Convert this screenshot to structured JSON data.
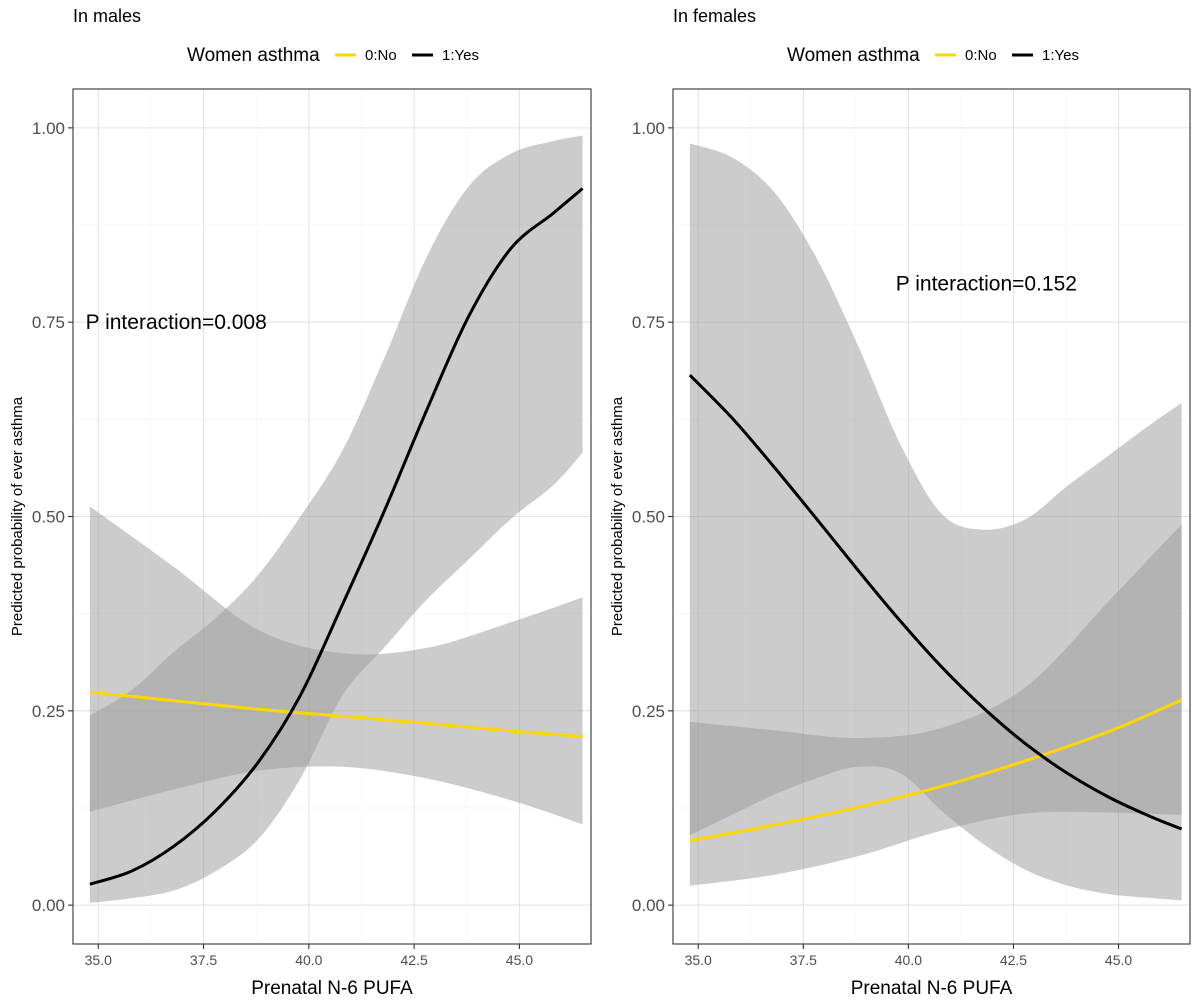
{
  "chart_data": [
    {
      "type": "line",
      "title": "In males",
      "legend": {
        "title": "Women asthma",
        "position": "top"
      },
      "xlabel": "Prenatal N-6 PUFA",
      "ylabel": "Predicted probability of ever asthma",
      "xlim": [
        34.4,
        46.7
      ],
      "ylim": [
        -0.05,
        1.05
      ],
      "xticks": [
        35.0,
        37.5,
        40.0,
        42.5,
        45.0
      ],
      "yticks": [
        0.0,
        0.25,
        0.5,
        0.75,
        1.0
      ],
      "xtick_labels": [
        "35.0",
        "37.5",
        "40.0",
        "42.5",
        "45.0"
      ],
      "ytick_labels": [
        "0.00",
        "0.25",
        "0.50",
        "0.75",
        "1.00"
      ],
      "grid": true,
      "annotation": {
        "text": "P interaction=0.008",
        "x": 34.7,
        "y": 0.75
      },
      "series": [
        {
          "name": "0:No",
          "color": "#FFD700",
          "x": [
            34.8,
            36.8,
            38.8,
            40.8,
            42.8,
            44.8,
            46.5
          ],
          "y": [
            0.274,
            0.263,
            0.252,
            0.243,
            0.234,
            0.224,
            0.217
          ],
          "ci_lower": [
            0.12,
            0.149,
            0.173,
            0.178,
            0.163,
            0.135,
            0.104
          ],
          "ci_upper": [
            0.513,
            0.435,
            0.354,
            0.324,
            0.331,
            0.364,
            0.396
          ]
        },
        {
          "name": "1:Yes",
          "color": "#000000",
          "x": [
            34.8,
            35.8,
            36.8,
            37.8,
            38.8,
            39.8,
            40.8,
            41.8,
            42.8,
            43.8,
            44.8,
            45.8,
            46.5
          ],
          "y": [
            0.027,
            0.044,
            0.076,
            0.122,
            0.184,
            0.27,
            0.387,
            0.508,
            0.637,
            0.758,
            0.845,
            0.89,
            0.922
          ],
          "ci_lower": [
            0.003,
            0.009,
            0.019,
            0.044,
            0.085,
            0.163,
            0.27,
            0.332,
            0.393,
            0.445,
            0.497,
            0.54,
            0.582
          ],
          "ci_upper": [
            0.244,
            0.277,
            0.326,
            0.37,
            0.425,
            0.5,
            0.585,
            0.705,
            0.834,
            0.925,
            0.967,
            0.983,
            0.99
          ]
        }
      ]
    },
    {
      "type": "line",
      "title": "In females",
      "legend": {
        "title": "Women asthma",
        "position": "top"
      },
      "xlabel": "Prenatal N-6 PUFA",
      "ylabel": "Predicted probability of ever asthma",
      "xlim": [
        34.4,
        46.7
      ],
      "ylim": [
        -0.05,
        1.05
      ],
      "xticks": [
        35.0,
        37.5,
        40.0,
        42.5,
        45.0
      ],
      "yticks": [
        0.0,
        0.25,
        0.5,
        0.75,
        1.0
      ],
      "xtick_labels": [
        "35.0",
        "37.5",
        "40.0",
        "42.5",
        "45.0"
      ],
      "ytick_labels": [
        "0.00",
        "0.25",
        "0.50",
        "0.75",
        "1.00"
      ],
      "grid": true,
      "annotation": {
        "text": "P interaction=0.152",
        "x": 39.7,
        "y": 0.8
      },
      "series": [
        {
          "name": "0:No",
          "color": "#FFD700",
          "x": [
            34.8,
            36.8,
            38.8,
            40.8,
            42.8,
            44.8,
            46.5
          ],
          "y": [
            0.083,
            0.103,
            0.126,
            0.153,
            0.186,
            0.224,
            0.264
          ],
          "ci_lower": [
            0.025,
            0.039,
            0.063,
            0.096,
            0.118,
            0.119,
            0.116
          ],
          "ci_upper": [
            0.236,
            0.225,
            0.215,
            0.228,
            0.281,
            0.393,
            0.49
          ]
        },
        {
          "name": "1:Yes",
          "color": "#000000",
          "x": [
            34.8,
            35.8,
            36.8,
            37.8,
            38.8,
            39.8,
            40.8,
            41.8,
            42.8,
            43.8,
            44.8,
            45.8,
            46.5
          ],
          "y": [
            0.682,
            0.627,
            0.564,
            0.498,
            0.431,
            0.366,
            0.306,
            0.253,
            0.207,
            0.169,
            0.138,
            0.113,
            0.098
          ],
          "ci_lower": [
            0.09,
            0.116,
            0.142,
            0.163,
            0.178,
            0.17,
            0.121,
            0.078,
            0.045,
            0.025,
            0.014,
            0.009,
            0.006
          ],
          "ci_upper": [
            0.98,
            0.962,
            0.918,
            0.834,
            0.72,
            0.594,
            0.503,
            0.483,
            0.497,
            0.54,
            0.58,
            0.62,
            0.646
          ]
        }
      ]
    }
  ]
}
